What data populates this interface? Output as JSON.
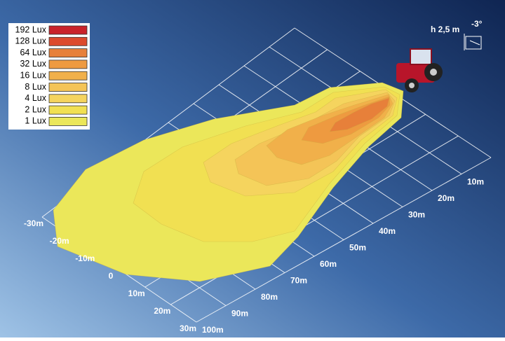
{
  "legend": {
    "items": [
      {
        "label": "192 Lux",
        "color": "#c9222a"
      },
      {
        "label": "128 Lux",
        "color": "#dc4a2d"
      },
      {
        "label": "64 Lux",
        "color": "#e7803a"
      },
      {
        "label": "32 Lux",
        "color": "#ee9a40"
      },
      {
        "label": "16 Lux",
        "color": "#f1b04a"
      },
      {
        "label": "8 Lux",
        "color": "#f4c457"
      },
      {
        "label": "4 Lux",
        "color": "#f5d45e"
      },
      {
        "label": "2 Lux",
        "color": "#f1e052"
      },
      {
        "label": "1 Lux",
        "color": "#ebe75a"
      }
    ]
  },
  "lateral_axis": {
    "labels": [
      "-30m",
      "-20m",
      "-10m",
      "0",
      "10m",
      "20m",
      "30m"
    ]
  },
  "distance_axis": {
    "labels": [
      "10m",
      "20m",
      "30m",
      "40m",
      "50m",
      "60m",
      "70m",
      "80m",
      "90m",
      "100m"
    ]
  },
  "mounting": {
    "height": "h 2,5 m",
    "tilt": "-3°"
  }
}
